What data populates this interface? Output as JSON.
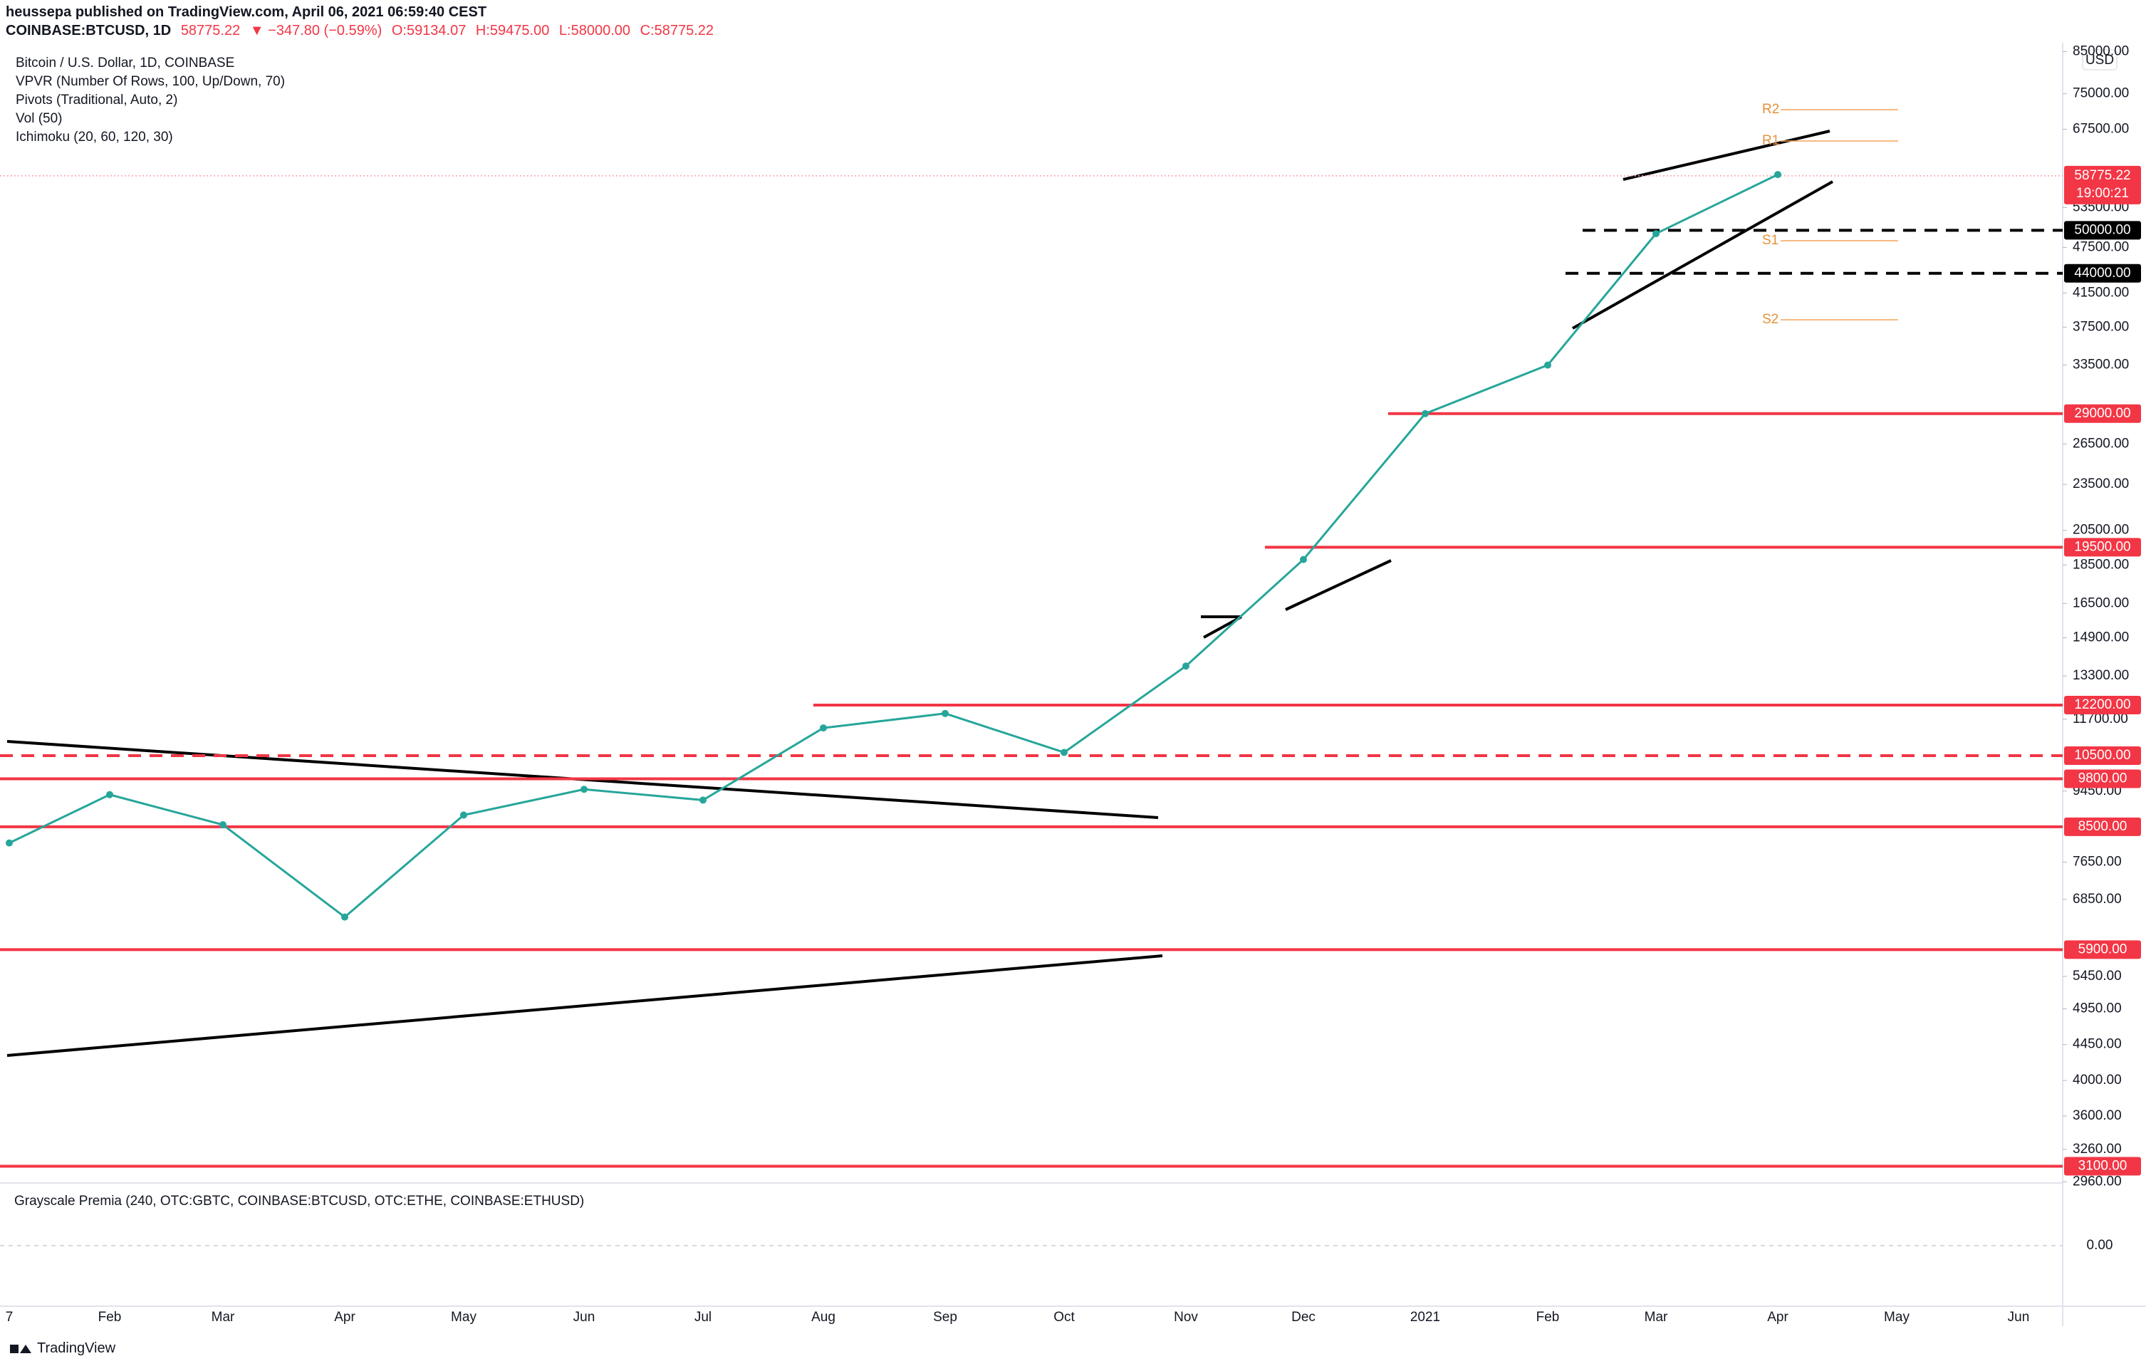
{
  "header": {
    "publisher": "heussepa published on TradingView.com, April 06, 2021 06:59:40 CEST",
    "symbol": "COINBASE:BTCUSD, 1D",
    "price": "58775.22",
    "change": "▼ −347.80 (−0.59%)",
    "ohlc": [
      "O:59134.07",
      "H:59475.00",
      "L:58000.00",
      "C:58775.22"
    ]
  },
  "legend": [
    "Bitcoin / U.S. Dollar, 1D, COINBASE",
    "VPVR (Number Of Rows, 100, Up/Down, 70)",
    "Pivots (Traditional, Auto, 2)",
    "Vol (50)",
    "Ichimoku (20, 60, 120, 30)"
  ],
  "pivots": [
    "R2",
    "R1",
    "S1",
    "S2"
  ],
  "chart_data": {
    "type": "line",
    "log_scale": true,
    "color": "#26a69a",
    "categories": [
      "7",
      "Feb",
      "Mar",
      "Apr",
      "May",
      "Jun",
      "Jul",
      "Aug",
      "Sep",
      "Oct",
      "Nov",
      "Dec",
      "2021",
      "Feb",
      "Mar",
      "Apr",
      "May",
      "Jun"
    ],
    "values": [
      8100,
      9350,
      8550,
      6500,
      8800,
      9500,
      9200,
      11400,
      11900,
      10600,
      13700,
      18800,
      29000,
      33500,
      49500,
      59000,
      null,
      null
    ],
    "ylim": [
      2950,
      86000
    ],
    "yticks": [
      {
        "value": 85000,
        "label": "85000.00"
      },
      {
        "value": 75000,
        "label": "75000.00"
      },
      {
        "value": 67500,
        "label": "67500.00"
      },
      {
        "value": 53500,
        "label": "53500.00"
      },
      {
        "value": 47500,
        "label": "47500.00"
      },
      {
        "value": 41500,
        "label": "41500.00"
      },
      {
        "value": 37500,
        "label": "37500.00"
      },
      {
        "value": 33500,
        "label": "33500.00"
      },
      {
        "value": 26500,
        "label": "26500.00"
      },
      {
        "value": 23500,
        "label": "23500.00"
      },
      {
        "value": 20500,
        "label": "20500.00"
      },
      {
        "value": 18500,
        "label": "18500.00"
      },
      {
        "value": 16500,
        "label": "16500.00"
      },
      {
        "value": 14900,
        "label": "14900.00"
      },
      {
        "value": 13300,
        "label": "13300.00"
      },
      {
        "value": 11700,
        "label": "11700.00"
      },
      {
        "value": 9450,
        "label": "9450.00"
      },
      {
        "value": 7650,
        "label": "7650.00"
      },
      {
        "value": 6850,
        "label": "6850.00"
      },
      {
        "value": 5450,
        "label": "5450.00"
      },
      {
        "value": 4950,
        "label": "4950.00"
      },
      {
        "value": 4450,
        "label": "4450.00"
      },
      {
        "value": 4000,
        "label": "4000.00"
      },
      {
        "value": 3600,
        "label": "3600.00"
      },
      {
        "value": 3260,
        "label": "3260.00"
      },
      {
        "value": 2960,
        "label": "2960.00"
      }
    ],
    "currency": "USD",
    "levels": [
      {
        "value": 50000,
        "label": "50000.00",
        "color": "#000000",
        "dashed": true
      },
      {
        "value": 44000,
        "label": "44000.00",
        "color": "#000000",
        "dashed": true
      },
      {
        "value": 29000,
        "label": "29000.00",
        "color": "#f23645",
        "dashed": false
      },
      {
        "value": 19500,
        "label": "19500.00",
        "color": "#f23645",
        "dashed": false
      },
      {
        "value": 12200,
        "label": "12200.00",
        "color": "#f23645",
        "dashed": false
      },
      {
        "value": 10500,
        "label": "10500.00",
        "color": "#f23645",
        "dashed": true
      },
      {
        "value": 9800,
        "label": "9800.00",
        "color": "#f23645",
        "dashed": false
      },
      {
        "value": 8500,
        "label": "8500.00",
        "color": "#f23645",
        "dashed": false
      },
      {
        "value": 5900,
        "label": "5900.00",
        "color": "#f23645",
        "dashed": false
      },
      {
        "value": 3100,
        "label": "3100.00",
        "color": "#f23645",
        "dashed": false
      }
    ],
    "last": 58775.22,
    "countdown": "19:00:21"
  },
  "premia": {
    "title": "Grayscale Premia (240, OTC:GBTC, COINBASE:BTCUSD, OTC:ETHE, COINBASE:ETHUSD)",
    "zero": "0.00"
  },
  "footer": "TradingView"
}
